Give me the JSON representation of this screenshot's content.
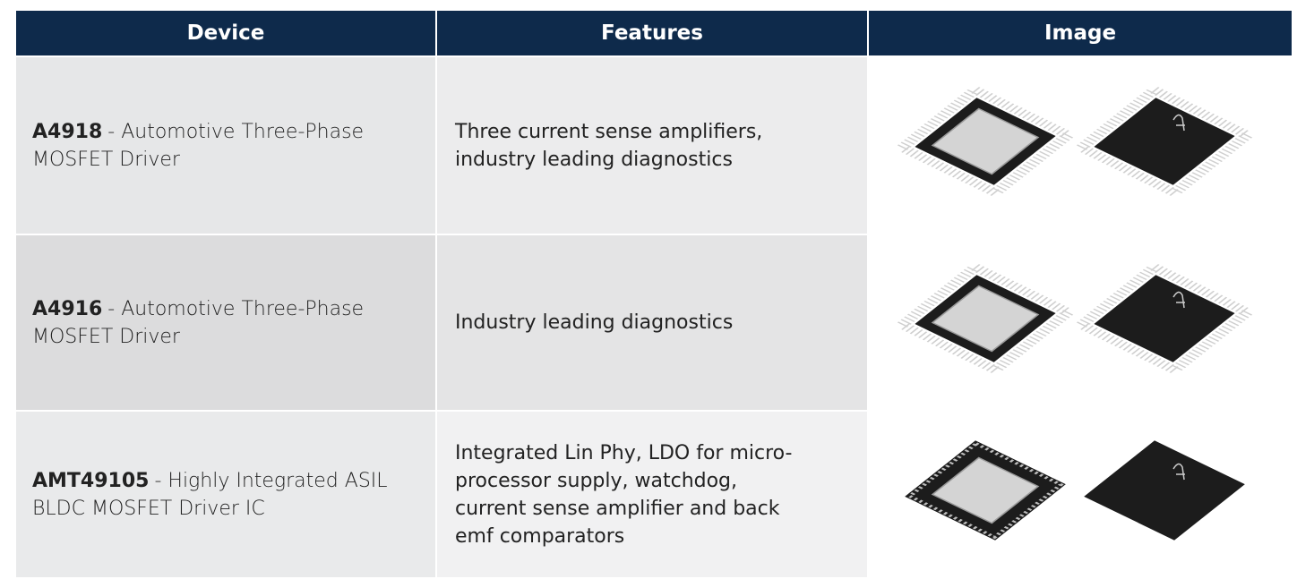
{
  "table": {
    "header": [
      "Device",
      "Features",
      "Image"
    ],
    "rows": [
      {
        "part": "A4918",
        "description": "- Automotive Three-Phase MOSFET Driver",
        "features": "Three current sense amplifiers, industry leading diagnostics"
      },
      {
        "part": "A4916",
        "description": "- Automotive Three-Phase MOSFET Driver",
        "features": "Industry leading diagnostics"
      },
      {
        "part": "AMT49105",
        "description": "- Highly Integrated ASIL BLDC MOSFET Driver IC",
        "features": "Integrated Lin Phy, LDO for micro-processor supply, watchdog, current sense amplifier and back emf comparators"
      }
    ]
  }
}
